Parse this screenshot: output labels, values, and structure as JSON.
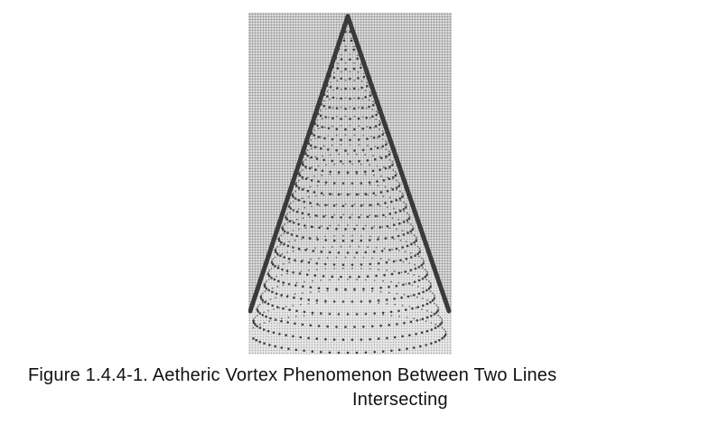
{
  "figure": {
    "caption_line_1": "Figure 1.4.4-1. Aetheric Vortex Phenomenon Between Two Lines",
    "caption_line_2": "Intersecting"
  }
}
